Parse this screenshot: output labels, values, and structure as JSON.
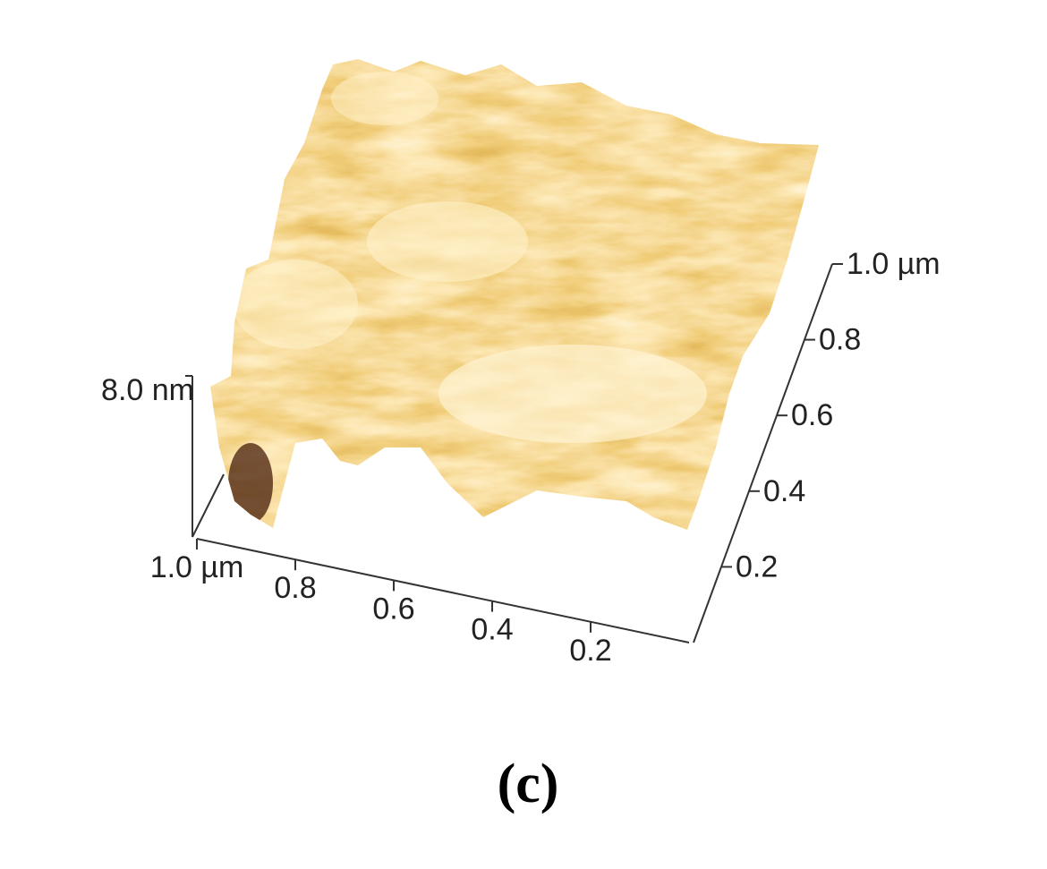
{
  "chart_data": {
    "type": "surface",
    "xlim": [
      0,
      1
    ],
    "xticks": [
      {
        "value": 1.0,
        "label": "1.0 µm"
      },
      0.8,
      0.6,
      0.4,
      0.2
    ],
    "ylim": [
      0,
      1
    ],
    "yticks": [
      0.2,
      0.4,
      0.6,
      0.8,
      {
        "value": 1.0,
        "label": "1.0 µm"
      }
    ],
    "zlim": [
      0,
      8
    ],
    "zticks": [
      {
        "value": 8,
        "label": "8.0 nm"
      }
    ]
  },
  "caption": "(c)"
}
